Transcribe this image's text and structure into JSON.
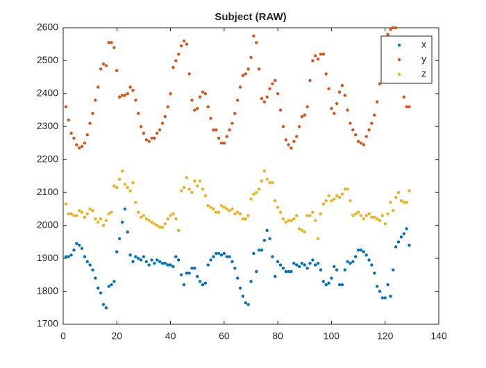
{
  "chart_data": {
    "type": "scatter",
    "title": "Subject (RAW)",
    "x": [
      1,
      2,
      3,
      4,
      5,
      6,
      7,
      8,
      9,
      10,
      11,
      12,
      13,
      14,
      15,
      16,
      17,
      18,
      19,
      20,
      21,
      22,
      23,
      24,
      25,
      26,
      27,
      28,
      29,
      30,
      31,
      32,
      33,
      34,
      35,
      36,
      37,
      38,
      39,
      40,
      41,
      42,
      43,
      44,
      45,
      46,
      47,
      48,
      49,
      50,
      51,
      52,
      53,
      54,
      55,
      56,
      57,
      58,
      59,
      60,
      61,
      62,
      63,
      64,
      65,
      66,
      67,
      68,
      69,
      70,
      71,
      72,
      73,
      74,
      75,
      76,
      77,
      78,
      79,
      80,
      81,
      82,
      83,
      84,
      85,
      86,
      87,
      88,
      89,
      90,
      91,
      92,
      93,
      94,
      95,
      96,
      97,
      98,
      99,
      100,
      101,
      102,
      103,
      104,
      105,
      106,
      107,
      108,
      109,
      110,
      111,
      112,
      113,
      114,
      115,
      116,
      117,
      118,
      119,
      120,
      121,
      122,
      123,
      124,
      125,
      126,
      127,
      128,
      129
    ],
    "series": [
      {
        "name": "x",
        "color": "#0072bd",
        "values": [
          1905,
          1905,
          1910,
          1925,
          1945,
          1940,
          1930,
          1905,
          1890,
          1880,
          1865,
          1840,
          1810,
          1795,
          1760,
          1750,
          1815,
          1820,
          1830,
          1920,
          1960,
          2010,
          2050,
          1980,
          1910,
          1890,
          1905,
          1900,
          1895,
          1905,
          1890,
          1880,
          1895,
          1885,
          1895,
          1890,
          1885,
          1885,
          1880,
          1880,
          1875,
          1905,
          1895,
          1850,
          1820,
          1855,
          1855,
          1870,
          1870,
          1845,
          1830,
          1820,
          1825,
          1880,
          1895,
          1905,
          1915,
          1915,
          1910,
          1915,
          1905,
          1905,
          1890,
          1870,
          1840,
          1810,
          1785,
          1765,
          1760,
          1830,
          1915,
          1860,
          1925,
          1925,
          1955,
          1985,
          1960,
          1905,
          1845,
          1890,
          1880,
          1870,
          1860,
          1860,
          1860,
          1885,
          1880,
          1875,
          1885,
          1880,
          1870,
          1885,
          1895,
          1880,
          1885,
          1865,
          1830,
          1820,
          1825,
          1840,
          1875,
          1865,
          1820,
          1820,
          1865,
          1890,
          1885,
          1890,
          1905,
          1925,
          1925,
          1920,
          1910,
          1895,
          1880,
          1855,
          1815,
          1800,
          1780,
          1780,
          1820,
          1785,
          1865,
          1935,
          1950,
          1965,
          1975,
          1990,
          1940
        ]
      },
      {
        "name": "y",
        "color": "#d95319",
        "values": [
          2360,
          2320,
          2280,
          2265,
          2245,
          2235,
          2240,
          2250,
          2275,
          2310,
          2340,
          2380,
          2420,
          2475,
          2490,
          2485,
          2555,
          2555,
          2540,
          2470,
          2390,
          2395,
          2395,
          2400,
          2420,
          2410,
          2380,
          2340,
          2300,
          2280,
          2260,
          2255,
          2265,
          2265,
          2280,
          2290,
          2310,
          2330,
          2360,
          2400,
          2480,
          2500,
          2520,
          2545,
          2560,
          2550,
          2460,
          2380,
          2350,
          2355,
          2390,
          2405,
          2400,
          2360,
          2325,
          2290,
          2290,
          2265,
          2250,
          2250,
          2270,
          2290,
          2310,
          2340,
          2380,
          2420,
          2455,
          2460,
          2475,
          2510,
          2575,
          2555,
          2475,
          2385,
          2375,
          2390,
          2415,
          2430,
          2440,
          2400,
          2350,
          2300,
          2260,
          2245,
          2235,
          2255,
          2270,
          2300,
          2330,
          2335,
          2360,
          2440,
          2500,
          2515,
          2505,
          2520,
          2520,
          2460,
          2415,
          2355,
          2340,
          2370,
          2405,
          2425,
          2395,
          2350,
          2310,
          2290,
          2275,
          2255,
          2250,
          2245,
          2270,
          2290,
          2310,
          2335,
          2375,
          2430,
          2480,
          2530,
          2580,
          2595,
          2600,
          2600,
          2520,
          2440,
          2390,
          2360,
          2360
        ]
      },
      {
        "name": "z",
        "color": "#edb120",
        "values": [
          2065,
          2035,
          2035,
          2030,
          2030,
          2045,
          2040,
          2025,
          2035,
          2050,
          2045,
          2020,
          2010,
          2020,
          2000,
          2015,
          2035,
          2040,
          2120,
          2115,
          2140,
          2165,
          2125,
          2115,
          2105,
          2130,
          2070,
          2040,
          2025,
          2030,
          2020,
          2015,
          2010,
          2005,
          2000,
          1995,
          1995,
          2005,
          2020,
          2030,
          2035,
          2020,
          1985,
          2105,
          2115,
          2145,
          2110,
          2100,
          2135,
          2120,
          2135,
          2110,
          2090,
          2060,
          2055,
          2050,
          2040,
          2040,
          2060,
          2055,
          2050,
          2045,
          2050,
          2035,
          2040,
          2035,
          2020,
          2020,
          2030,
          2080,
          2095,
          2100,
          2110,
          2135,
          2165,
          2140,
          2130,
          2130,
          2075,
          2055,
          2040,
          2020,
          2010,
          2015,
          2015,
          2020,
          2030,
          1990,
          1985,
          1980,
          2030,
          2030,
          2040,
          2015,
          1960,
          2035,
          2065,
          2075,
          2090,
          2075,
          2080,
          2090,
          2085,
          2095,
          2110,
          2110,
          2075,
          2030,
          2035,
          2040,
          2030,
          2020,
          2030,
          2035,
          2025,
          2025,
          2020,
          2015,
          2030,
          2005,
          2035,
          2070,
          2045,
          2085,
          2100,
          2075,
          2070,
          2070,
          2105
        ]
      }
    ],
    "xlim": [
      0,
      140
    ],
    "xticks": [
      0,
      20,
      40,
      60,
      80,
      100,
      120,
      140
    ],
    "ylim": [
      1700,
      2600
    ],
    "yticks": [
      1700,
      1800,
      1900,
      2000,
      2100,
      2200,
      2300,
      2400,
      2500,
      2600
    ],
    "grid": false,
    "legend": "northeast"
  }
}
